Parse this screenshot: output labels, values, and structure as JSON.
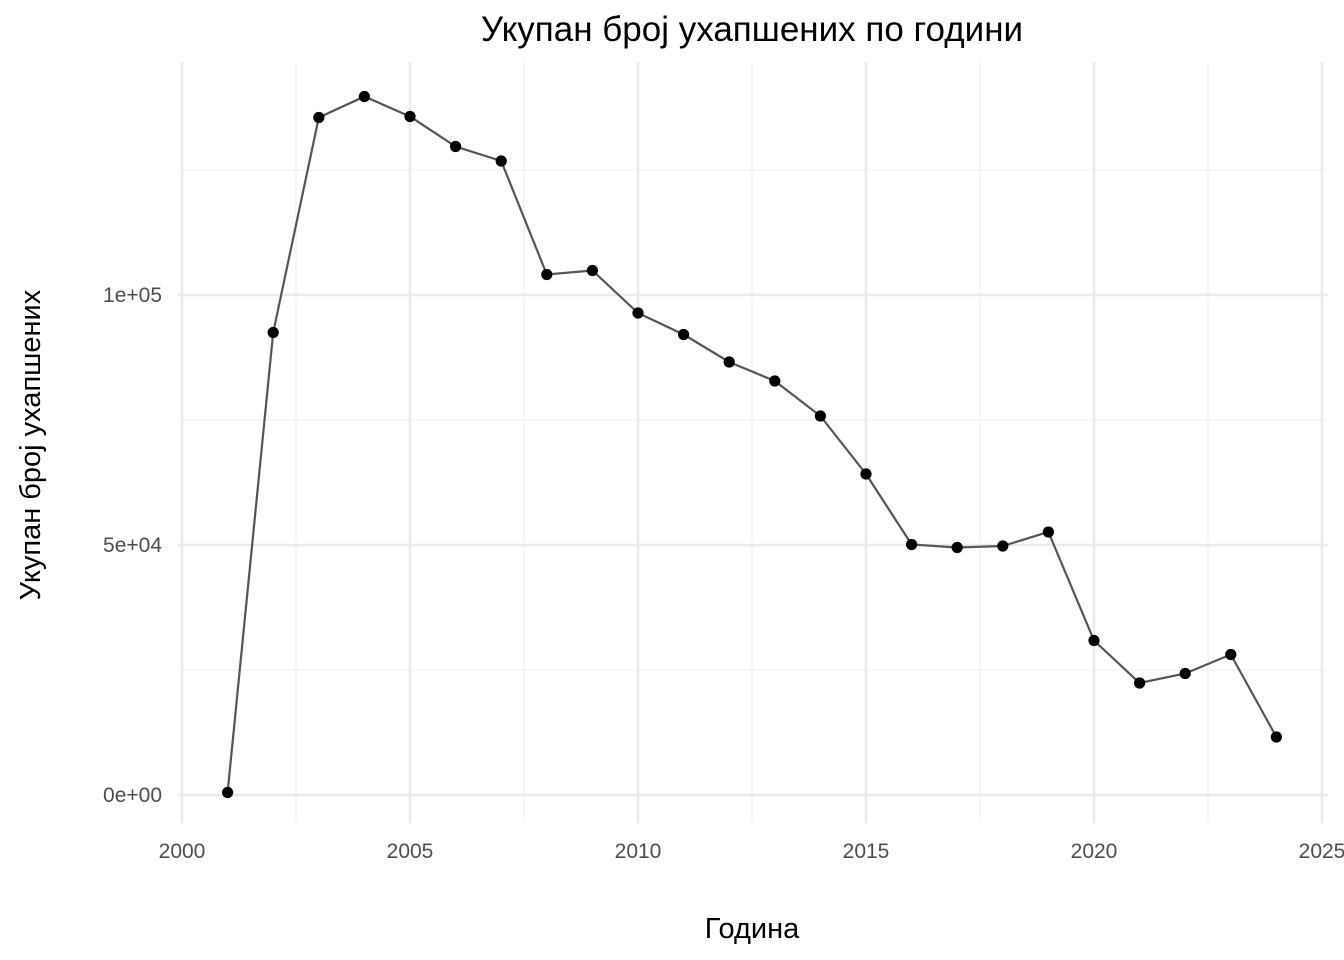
{
  "chart_data": {
    "type": "line",
    "title": "Укупан број ухапшених по години",
    "xlabel": "Година",
    "ylabel": "Укупан број ухапшених",
    "xlim": [
      2000,
      2025
    ],
    "ylim": [
      0,
      140000
    ],
    "grid": true,
    "x_ticks": [
      2000,
      2005,
      2010,
      2015,
      2020,
      2025
    ],
    "x_tick_labels": [
      "2000",
      "2005",
      "2010",
      "2015",
      "2020",
      "2025"
    ],
    "y_ticks": [
      0,
      50000,
      100000
    ],
    "y_tick_labels": [
      "0e+00",
      "5e+04",
      "1e+05"
    ],
    "series": [
      {
        "x": [
          2001,
          2002,
          2003,
          2004,
          2005,
          2006,
          2007,
          2008,
          2009,
          2010,
          2011,
          2012,
          2013,
          2014,
          2015,
          2016,
          2017,
          2018,
          2019,
          2020,
          2021,
          2022,
          2023,
          2024
        ],
        "values": [
          500,
          92500,
          135500,
          139700,
          135700,
          129700,
          126800,
          104100,
          104900,
          96400,
          92100,
          86600,
          82800,
          75800,
          64200,
          50100,
          49500,
          49800,
          52600,
          30900,
          22400,
          24300,
          28100,
          11600
        ]
      }
    ],
    "colors": {
      "line": "#555555",
      "point": "#000000",
      "grid": "#ebebeb",
      "tick_text": "#4d4d4d"
    }
  }
}
